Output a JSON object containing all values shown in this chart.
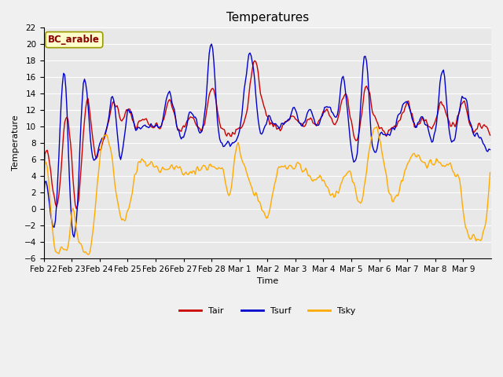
{
  "title": "Temperatures",
  "xlabel": "Time",
  "ylabel": "Temperature",
  "ylim": [
    -6,
    22
  ],
  "yticks": [
    -6,
    -4,
    -2,
    0,
    2,
    4,
    6,
    8,
    10,
    12,
    14,
    16,
    18,
    20,
    22
  ],
  "x_tick_labels": [
    "Feb 22",
    "Feb 23",
    "Feb 24",
    "Feb 25",
    "Feb 26",
    "Feb 27",
    "Feb 28",
    "Mar 1",
    "Mar 2",
    "Mar 3",
    "Mar 4",
    "Mar 5",
    "Mar 6",
    "Mar 7",
    "Mar 8",
    "Mar 9"
  ],
  "bg_color": "#e8e8e8",
  "fig_color": "#f0f0f0",
  "legend_entries": [
    "Tair",
    "Tsurf",
    "Tsky"
  ],
  "tair_color": "#cc0000",
  "tsurf_color": "#0000cc",
  "tsky_color": "#ffaa00",
  "box_label": "BC_arable",
  "box_facecolor": "#ffffcc",
  "box_text_color": "#8b0000",
  "box_edge_color": "#999900",
  "line_width": 1.0,
  "title_fontsize": 11,
  "label_fontsize": 8,
  "tick_fontsize": 7.5
}
